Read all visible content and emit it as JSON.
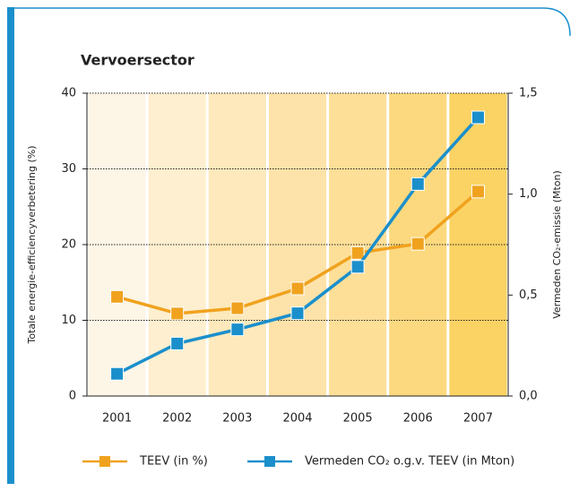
{
  "chart_data": {
    "type": "line",
    "title": "Vervoersector",
    "categories": [
      "2001",
      "2002",
      "2003",
      "2004",
      "2005",
      "2006",
      "2007"
    ],
    "series": [
      {
        "name": "TEEV (in %)",
        "color": "#f0a21e",
        "values": [
          13.1,
          10.9,
          11.6,
          14.2,
          18.9,
          20.1,
          27
        ]
      },
      {
        "name": "Vermeden CO₂ o.g.v. TEEV (in Mton)",
        "color": "#1b8fcb",
        "axis": "y2",
        "values": [
          0.11,
          0.26,
          0.33,
          0.41,
          0.64,
          1.05,
          1.38
        ]
      }
    ],
    "ylabel": "Totale energie-efficiencyverbetering (%)",
    "y2label": "Vermeden CO₂-emissie (Mton)",
    "ylim": [
      0,
      40
    ],
    "yticks": [
      0,
      10,
      20,
      30,
      40
    ],
    "y2lim": [
      0,
      1.5
    ],
    "y2ticks": [
      {
        "value": 0,
        "label": "0,0"
      },
      {
        "value": 0.5,
        "label": "0,5"
      },
      {
        "value": 1,
        "label": "1,0"
      },
      {
        "value": 1.5,
        "label": "1,5"
      }
    ],
    "grid": true,
    "legend": "bottom",
    "background_colors": [
      "#fdf5e6",
      "#fdefcf",
      "#fde9bb",
      "#fde3a9",
      "#fddf98",
      "#fcd97f",
      "#fbd364"
    ]
  }
}
